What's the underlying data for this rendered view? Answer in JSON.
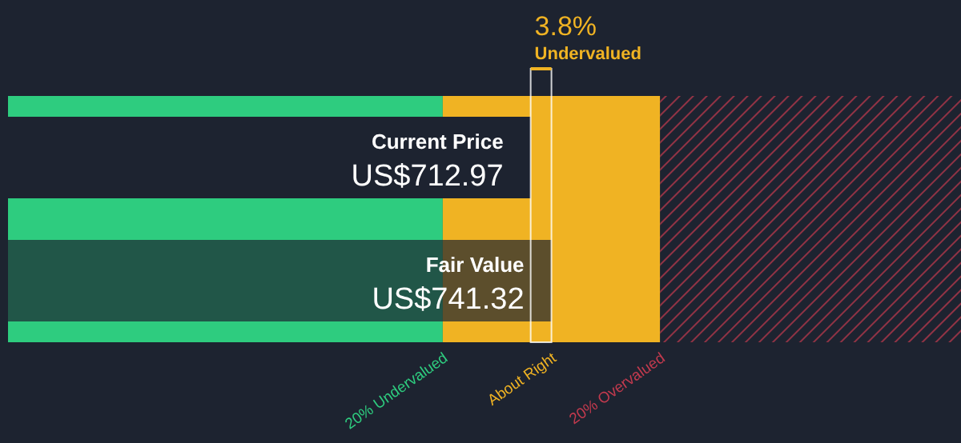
{
  "chart_data": {
    "type": "bar",
    "orientation": "horizontal",
    "categories": [
      "Current Price",
      "Fair Value"
    ],
    "values": [
      712.97,
      741.32
    ],
    "value_labels": [
      "US$712.97",
      "US$741.32"
    ],
    "colors": [
      "#1d2330",
      "#1d2330"
    ],
    "xlim": [
      0,
      1300
    ],
    "tick_labels": false,
    "grid": false,
    "legend": false,
    "bands": [
      {
        "axis": "x",
        "from": 0,
        "to": 593.06,
        "label": "20% Undervalued",
        "color": "#2ecc7f"
      },
      {
        "axis": "x",
        "from": 593.06,
        "to": 889.58,
        "label": "About Right",
        "color": "#f0b323"
      },
      {
        "axis": "x",
        "from": 889.58,
        "to": 1300,
        "label": "20% Overvalued",
        "color": "#c23a4e"
      }
    ],
    "annotations": [
      "3.8%",
      "Undervalued"
    ]
  }
}
